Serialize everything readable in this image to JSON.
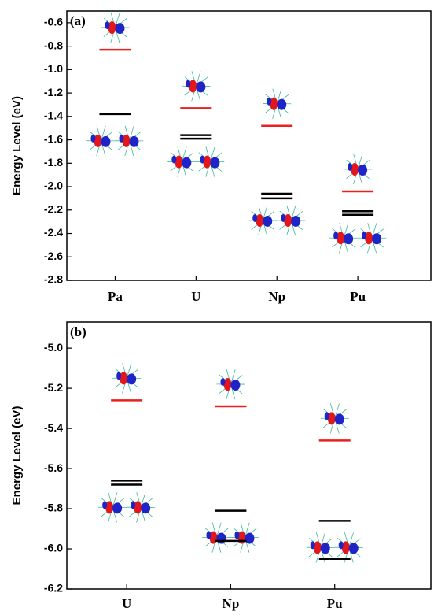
{
  "chart_data": [
    {
      "type": "level",
      "panel_label": "(a)",
      "y_label": "Energy Level (eV)",
      "categories": [
        "Pa",
        "U",
        "Np",
        "Pu"
      ],
      "series": [
        {
          "color": "#e8201e",
          "values": [
            -0.83,
            -1.33,
            -1.48,
            -2.04
          ]
        },
        {
          "color": "#000000",
          "values": [
            -1.38,
            -1.56,
            -2.06,
            -2.21
          ]
        },
        {
          "color": "#000000",
          "values": [
            null,
            -1.59,
            -2.1,
            -2.24
          ]
        }
      ],
      "ylim": [
        -2.8,
        -0.5
      ],
      "yticks": [
        -0.6,
        -0.8,
        {
          "value": -1,
          "label": "-1.0"
        },
        -1.2,
        -1.4,
        -1.6,
        -1.8,
        {
          "value": -2,
          "label": "-2.0"
        },
        -2.2,
        -2.4,
        -2.6,
        -2.8
      ]
    },
    {
      "type": "level",
      "panel_label": "(b)",
      "y_label": "Energy Level (eV)",
      "categories": [
        "U",
        "Np",
        "Pu"
      ],
      "series": [
        {
          "color": "#e8201e",
          "values": [
            -5.26,
            -5.29,
            -5.46
          ]
        },
        {
          "color": "#000000",
          "values": [
            -5.66,
            -5.81,
            -5.86
          ]
        },
        {
          "color": "#000000",
          "values": [
            -5.68,
            -5.96,
            -6.05
          ]
        }
      ],
      "ylim": [
        -6.2,
        -4.87
      ],
      "yticks": [
        {
          "value": -5,
          "label": "-5.0"
        },
        -5.2,
        -5.4,
        -5.6,
        -5.8,
        {
          "value": -6,
          "label": "-6.0"
        },
        -6.2
      ]
    }
  ]
}
